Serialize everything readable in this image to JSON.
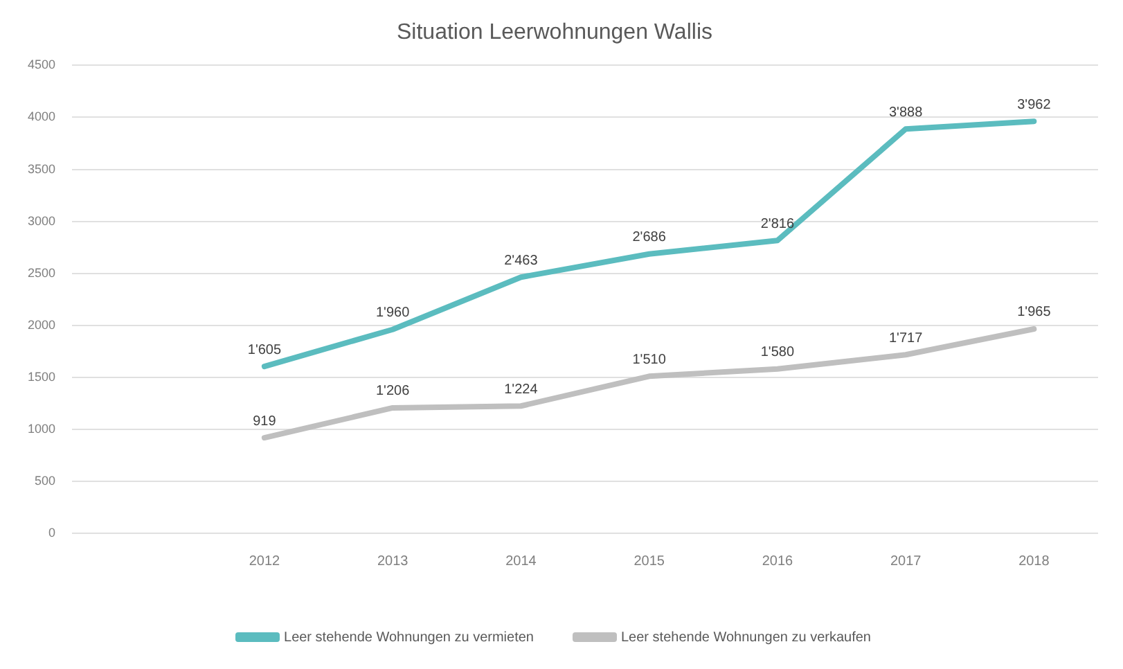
{
  "chart_data": {
    "type": "line",
    "title": "Situation Leerwohnungen Wallis",
    "categories": [
      null,
      "2012",
      "2013",
      "2014",
      "2015",
      "2016",
      "2017",
      "2018"
    ],
    "series": [
      {
        "name": "Leer stehende Wohnungen zu vermieten",
        "color": "#5bbcbf",
        "values": [
          null,
          1605,
          1960,
          2463,
          2686,
          2816,
          3888,
          3962
        ],
        "value_labels": [
          null,
          "1'605",
          "1'960",
          "2'463",
          "2'686",
          "2'816",
          "3'888",
          "3'962"
        ]
      },
      {
        "name": "Leer stehende Wohnungen zu verkaufen",
        "color": "#bfbfbf",
        "values": [
          null,
          919,
          1206,
          1224,
          1510,
          1580,
          1717,
          1965
        ],
        "value_labels": [
          null,
          "919",
          "1'206",
          "1'224",
          "1'510",
          "1'580",
          "1'717",
          "1'965"
        ]
      }
    ],
    "ylim": [
      0,
      4500
    ],
    "yticks": [
      0,
      500,
      1000,
      1500,
      2000,
      2500,
      3000,
      3500,
      4000,
      4500
    ],
    "grid": "y",
    "legend": "bottom",
    "marker": "none",
    "line_style": "solid"
  }
}
